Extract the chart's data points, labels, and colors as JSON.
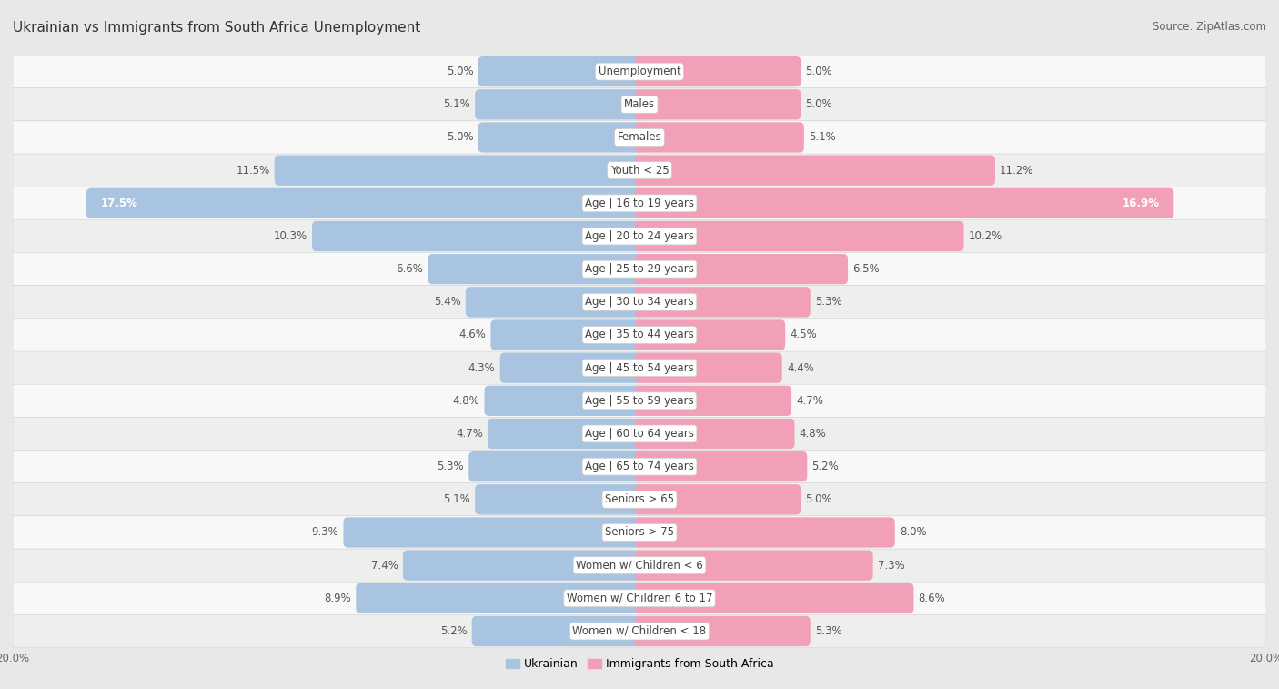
{
  "title": "Ukrainian vs Immigrants from South Africa Unemployment",
  "source": "Source: ZipAtlas.com",
  "categories": [
    "Unemployment",
    "Males",
    "Females",
    "Youth < 25",
    "Age | 16 to 19 years",
    "Age | 20 to 24 years",
    "Age | 25 to 29 years",
    "Age | 30 to 34 years",
    "Age | 35 to 44 years",
    "Age | 45 to 54 years",
    "Age | 55 to 59 years",
    "Age | 60 to 64 years",
    "Age | 65 to 74 years",
    "Seniors > 65",
    "Seniors > 75",
    "Women w/ Children < 6",
    "Women w/ Children 6 to 17",
    "Women w/ Children < 18"
  ],
  "ukrainian": [
    5.0,
    5.1,
    5.0,
    11.5,
    17.5,
    10.3,
    6.6,
    5.4,
    4.6,
    4.3,
    4.8,
    4.7,
    5.3,
    5.1,
    9.3,
    7.4,
    8.9,
    5.2
  ],
  "immigrants": [
    5.0,
    5.0,
    5.1,
    11.2,
    16.9,
    10.2,
    6.5,
    5.3,
    4.5,
    4.4,
    4.7,
    4.8,
    5.2,
    5.0,
    8.0,
    7.3,
    8.6,
    5.3
  ],
  "ukrainian_color": "#a8c4e0",
  "immigrants_color": "#f2a0b8",
  "bar_height": 0.62,
  "max_val": 20.0,
  "bg_color": "#e8e8e8",
  "row_bg_light": "#f5f5f5",
  "row_bg_dark": "#e0e0e0",
  "title_fontsize": 11,
  "label_fontsize": 8.5,
  "tick_fontsize": 8.5,
  "source_fontsize": 8.5
}
